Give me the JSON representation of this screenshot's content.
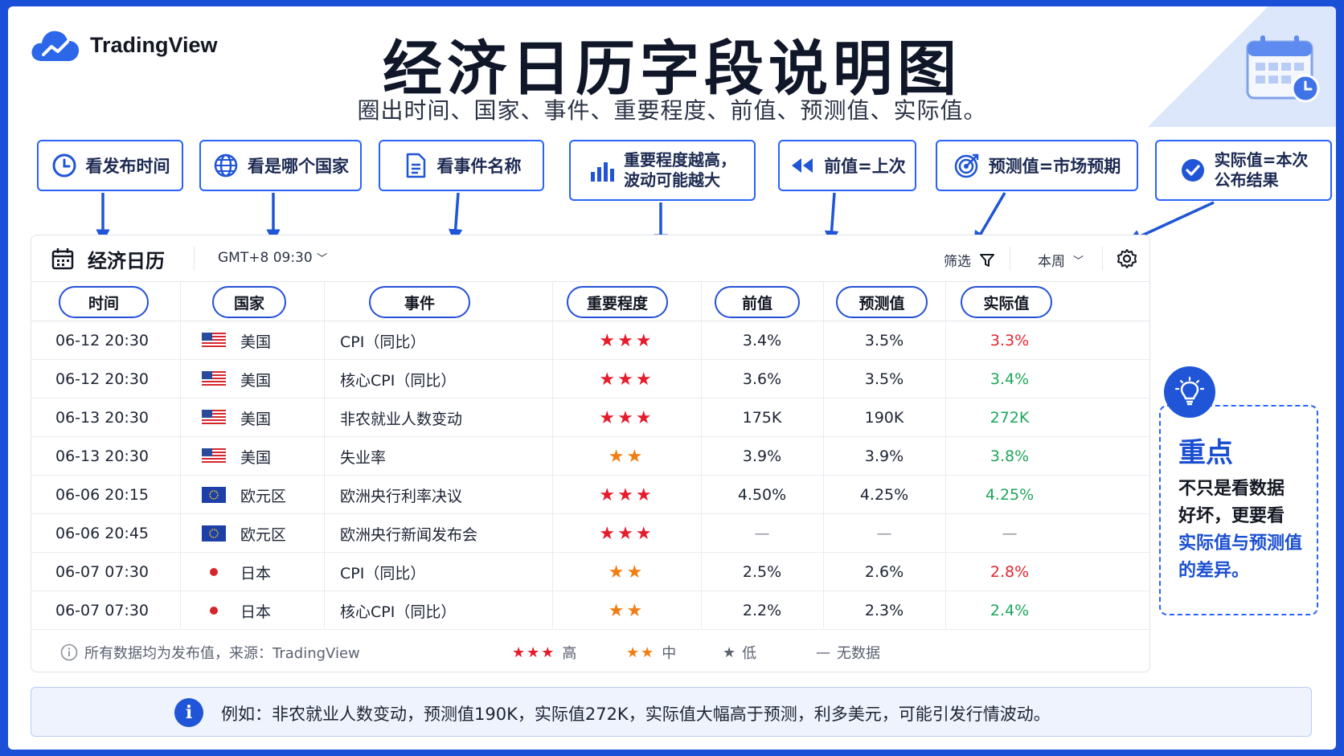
{
  "brand": {
    "name": "TradingView"
  },
  "header": {
    "title": "经济日历字段说明图",
    "subtitle": "圈出时间、国家、事件、重要程度、前值、预测值、实际值。"
  },
  "callouts": [
    {
      "icon": "clock-icon",
      "line1": "看发布时间",
      "line2": ""
    },
    {
      "icon": "globe-icon",
      "line1": "看是哪个国家",
      "line2": ""
    },
    {
      "icon": "document-icon",
      "line1": "看事件名称",
      "line2": ""
    },
    {
      "icon": "bar-chart-icon",
      "line1": "重要程度越高，",
      "line2": "波动可能越大"
    },
    {
      "icon": "rewind-icon",
      "line1": "前值=上次",
      "line2": ""
    },
    {
      "icon": "target-icon",
      "line1": "预测值=市场预期",
      "line2": ""
    },
    {
      "icon": "check-circle-icon",
      "line1": "实际值=本次",
      "line2": "公布结果"
    }
  ],
  "calendar": {
    "title": "经济日历",
    "timezone": "GMT+8 09:30",
    "filter_label": "筛选",
    "period_label": "本周",
    "columns": [
      "时间",
      "国家",
      "事件",
      "重要程度",
      "前值",
      "预测值",
      "实际值"
    ],
    "rows": [
      {
        "time": "06-12 20:30",
        "flag": "us",
        "country": "美国",
        "event": "CPI（同比）",
        "stars": "★★★",
        "level": "high",
        "previous": "3.4%",
        "forecast": "3.5%",
        "actual": "3.3%",
        "actual_color": "red"
      },
      {
        "time": "06-12 20:30",
        "flag": "us",
        "country": "美国",
        "event": "核心CPI（同比）",
        "stars": "★★★",
        "level": "high",
        "previous": "3.6%",
        "forecast": "3.5%",
        "actual": "3.4%",
        "actual_color": "green"
      },
      {
        "time": "06-13 20:30",
        "flag": "us",
        "country": "美国",
        "event": "非农就业人数变动",
        "stars": "★★★",
        "level": "high",
        "previous": "175K",
        "forecast": "190K",
        "actual": "272K",
        "actual_color": "green"
      },
      {
        "time": "06-13 20:30",
        "flag": "us",
        "country": "美国",
        "event": "失业率",
        "stars": "★★",
        "level": "mid",
        "previous": "3.9%",
        "forecast": "3.9%",
        "actual": "3.8%",
        "actual_color": "green"
      },
      {
        "time": "06-06 20:15",
        "flag": "eu",
        "country": "欧元区",
        "event": "欧洲央行利率决议",
        "stars": "★★★",
        "level": "high",
        "previous": "4.50%",
        "forecast": "4.25%",
        "actual": "4.25%",
        "actual_color": "green"
      },
      {
        "time": "06-06 20:45",
        "flag": "eu",
        "country": "欧元区",
        "event": "欧洲央行新闻发布会",
        "stars": "★★★",
        "level": "high",
        "previous": "—",
        "forecast": "—",
        "actual": "—",
        "actual_color": "dash"
      },
      {
        "time": "06-07 07:30",
        "flag": "jp",
        "country": "日本",
        "event": "CPI（同比）",
        "stars": "★★",
        "level": "mid",
        "previous": "2.5%",
        "forecast": "2.6%",
        "actual": "2.8%",
        "actual_color": "red"
      },
      {
        "time": "06-07 07:30",
        "flag": "jp",
        "country": "日本",
        "event": "核心CPI（同比）",
        "stars": "★★",
        "level": "mid",
        "previous": "2.2%",
        "forecast": "2.3%",
        "actual": "2.4%",
        "actual_color": "green"
      }
    ],
    "footer": {
      "source_note": "所有数据均为发布值，来源：TradingView",
      "legend": [
        {
          "stars": "★★★",
          "label": "高",
          "color": "#e51c2c"
        },
        {
          "stars": "★★",
          "label": "中",
          "color": "#f27d12"
        },
        {
          "stars": "★",
          "label": "低",
          "color": "#5b6170"
        },
        {
          "stars": "—",
          "label": "无数据",
          "color": "#5b6170"
        }
      ]
    }
  },
  "note": {
    "title": "重点",
    "line1": "不只是看数据",
    "line2": "好坏，更要看",
    "line3": "实际值与预测值",
    "line4": "的差异。"
  },
  "example": {
    "text": "例如：非农就业人数变动，预测值190K，实际值272K，实际值大幅高于预测，利多美元，可能引发行情波动。"
  },
  "colors": {
    "accent": "#2962ff",
    "brand_blue": "#1f55d6",
    "star_high": "#e51c2c",
    "star_mid": "#f27d12",
    "actual_red": "#e5262d",
    "actual_green": "#1ea65a"
  }
}
